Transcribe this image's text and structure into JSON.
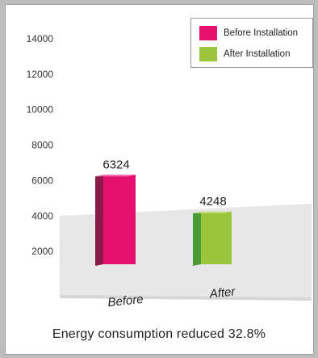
{
  "chart_data": {
    "type": "bar",
    "categories": [
      "Before",
      "After"
    ],
    "series": [
      {
        "name": "Before Installation",
        "values": [
          6324,
          null
        ],
        "color": "#e5106f"
      },
      {
        "name": "After Installation",
        "values": [
          null,
          4248
        ],
        "color": "#9bc53d"
      }
    ],
    "values": [
      6324,
      4248
    ],
    "data_labels": [
      "6324",
      "4248"
    ],
    "ylim": [
      0,
      14000
    ],
    "yticks": [
      2000,
      4000,
      6000,
      8000,
      10000,
      12000,
      14000
    ],
    "ytick_labels": [
      "2000",
      "4000",
      "6000",
      "8000",
      "10000",
      "12000",
      "14000"
    ],
    "legend_position": "top-right",
    "grid": false,
    "style": "3d"
  },
  "caption": "Energy consumption reduced 32.8%",
  "legend": [
    {
      "label": "Before Installation",
      "color": "#e5106f"
    },
    {
      "label": "After Installation",
      "color": "#9bc53d"
    }
  ]
}
